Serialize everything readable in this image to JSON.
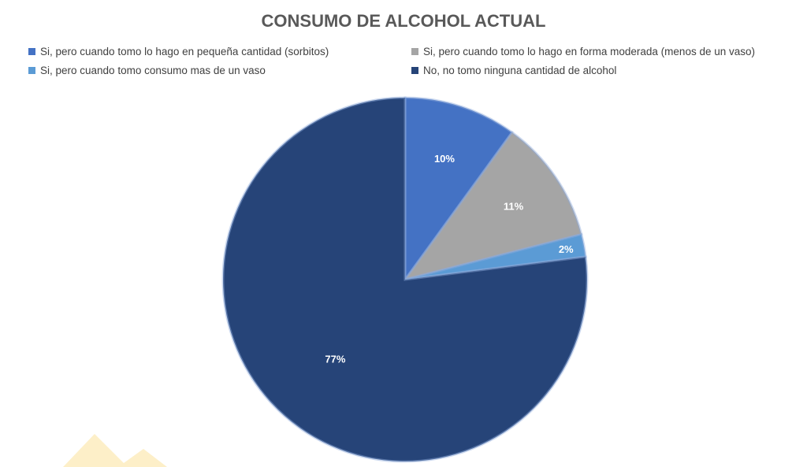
{
  "chart_data": {
    "type": "pie",
    "title": "CONSUMO DE ALCOHOL ACTUAL",
    "legend_position": "top",
    "slices": [
      {
        "name": "Si, pero cuando tomo lo hago en pequeña cantidad (sorbitos)",
        "value": 10,
        "label": "10%",
        "color": "#4472C4"
      },
      {
        "name": "Si, pero cuando tomo lo hago en forma moderada (menos de un vaso)",
        "value": 11,
        "label": "11%",
        "color": "#A5A5A5"
      },
      {
        "name": "Si, pero cuando tomo consumo mas de un vaso",
        "value": 2,
        "label": "2%",
        "color": "#5B9BD5"
      },
      {
        "name": "No, no tomo ninguna cantidad de alcohol",
        "value": 77,
        "label": "77%",
        "color": "#264478"
      }
    ]
  }
}
